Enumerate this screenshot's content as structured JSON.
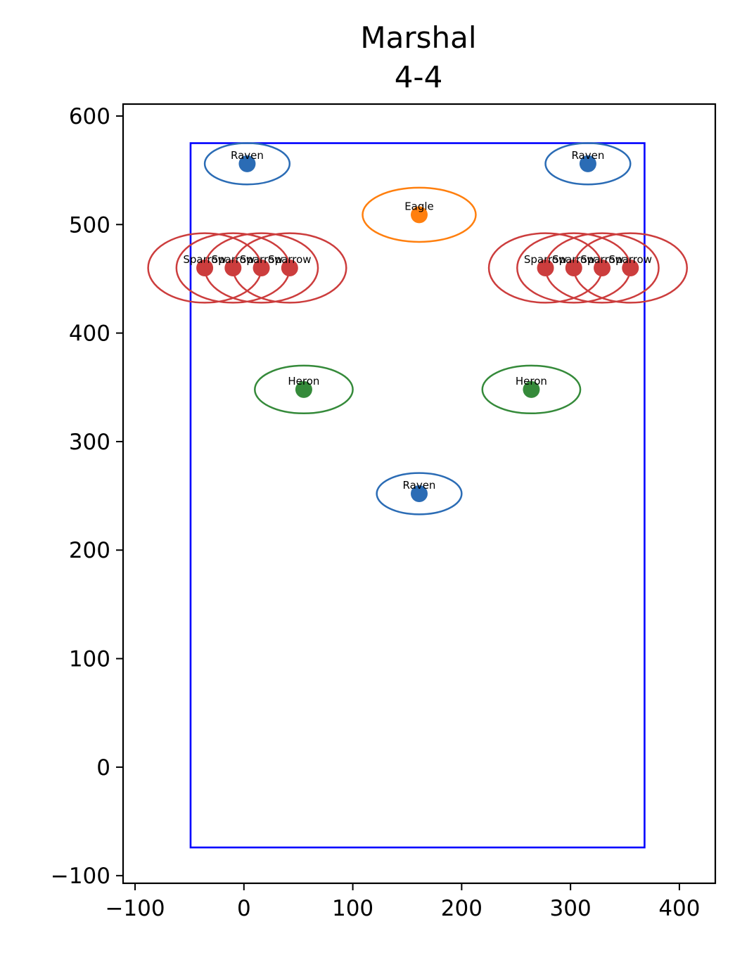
{
  "chart_data": {
    "type": "scatter",
    "title": "Marshal",
    "subtitle": "4-4",
    "xlabel": "",
    "ylabel": "",
    "xlim": [
      -111,
      433
    ],
    "ylim": [
      -107,
      611
    ],
    "xticks": [
      -100,
      0,
      100,
      200,
      300,
      400
    ],
    "yticks": [
      -100,
      0,
      100,
      200,
      300,
      400,
      500,
      600
    ],
    "tick_labels_x": [
      "−100",
      "0",
      "100",
      "200",
      "300",
      "400"
    ],
    "tick_labels_y": [
      "−100",
      "0",
      "100",
      "200",
      "300",
      "400",
      "500",
      "600"
    ],
    "grid": false,
    "boundary": {
      "x0": -49,
      "y0": -74,
      "x1": 368,
      "y1": 575,
      "color": "#0000ff"
    },
    "colors": {
      "Raven": "#2b6cb5",
      "Eagle": "#ff7f0e",
      "Sparrow": "#cc3d3d",
      "Heron": "#358a3a"
    },
    "points": [
      {
        "name": "Raven",
        "x": 3,
        "y": 556,
        "rx": 39,
        "ry": 19
      },
      {
        "name": "Raven",
        "x": 316,
        "y": 556,
        "rx": 39,
        "ry": 19
      },
      {
        "name": "Eagle",
        "x": 161,
        "y": 509,
        "rx": 52,
        "ry": 25
      },
      {
        "name": "Sparrow",
        "x": -36,
        "y": 460,
        "rx": 52,
        "ry": 32
      },
      {
        "name": "Sparrow",
        "x": -10,
        "y": 460,
        "rx": 52,
        "ry": 32
      },
      {
        "name": "Sparrow",
        "x": 16,
        "y": 460,
        "rx": 52,
        "ry": 32
      },
      {
        "name": "Sparrow",
        "x": 42,
        "y": 460,
        "rx": 52,
        "ry": 32
      },
      {
        "name": "Sparrow",
        "x": 277,
        "y": 460,
        "rx": 52,
        "ry": 32
      },
      {
        "name": "Sparrow",
        "x": 303,
        "y": 460,
        "rx": 52,
        "ry": 32
      },
      {
        "name": "Sparrow",
        "x": 329,
        "y": 460,
        "rx": 52,
        "ry": 32
      },
      {
        "name": "Sparrow",
        "x": 355,
        "y": 460,
        "rx": 52,
        "ry": 32
      },
      {
        "name": "Heron",
        "x": 55,
        "y": 348,
        "rx": 45,
        "ry": 22
      },
      {
        "name": "Heron",
        "x": 264,
        "y": 348,
        "rx": 45,
        "ry": 22
      },
      {
        "name": "Raven",
        "x": 161,
        "y": 252,
        "rx": 39,
        "ry": 19
      }
    ]
  }
}
